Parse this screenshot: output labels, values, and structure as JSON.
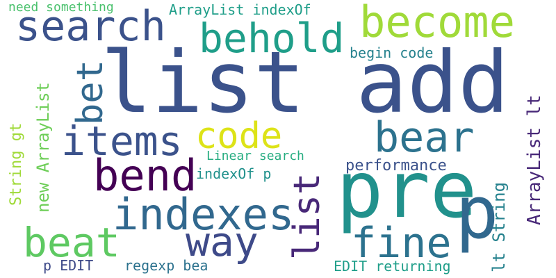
{
  "words": [
    {
      "text": "list add",
      "color": "#3b528b"
    },
    {
      "text": "pre",
      "color": "#21918c"
    },
    {
      "text": "p",
      "color": "#31688e"
    },
    {
      "text": "search",
      "color": "#3b528b"
    },
    {
      "text": "behold",
      "color": "#1f9e89"
    },
    {
      "text": "become",
      "color": "#a0da39"
    },
    {
      "text": "bet",
      "color": "#31688e"
    },
    {
      "text": "items",
      "color": "#3b528b"
    },
    {
      "text": "code",
      "color": "#dde318"
    },
    {
      "text": "bear",
      "color": "#2c728e"
    },
    {
      "text": "bend",
      "color": "#440154"
    },
    {
      "text": "indexes",
      "color": "#31688e"
    },
    {
      "text": "list",
      "color": "#482878"
    },
    {
      "text": "way",
      "color": "#3e4a89"
    },
    {
      "text": "fine",
      "color": "#2c728e"
    },
    {
      "text": "beat",
      "color": "#5ec962"
    },
    {
      "text": "need something",
      "color": "#4ac16d"
    },
    {
      "text": "ArrayList indexOf",
      "color": "#1f9e89"
    },
    {
      "text": "begin code",
      "color": "#26828e"
    },
    {
      "text": "String gt",
      "color": "#a0da39"
    },
    {
      "text": "new ArrayList",
      "color": "#6ece58"
    },
    {
      "text": "Linear search",
      "color": "#27ad81"
    },
    {
      "text": "indexOf p",
      "color": "#21918c"
    },
    {
      "text": "performance",
      "color": "#3b528b"
    },
    {
      "text": "ArrayList lt",
      "color": "#482878"
    },
    {
      "text": "lt String",
      "color": "#26828e"
    },
    {
      "text": "p EDIT",
      "color": "#3e4a89"
    },
    {
      "text": "regexp bea",
      "color": "#2c728e"
    },
    {
      "text": "EDIT returning",
      "color": "#1f9e89"
    }
  ]
}
